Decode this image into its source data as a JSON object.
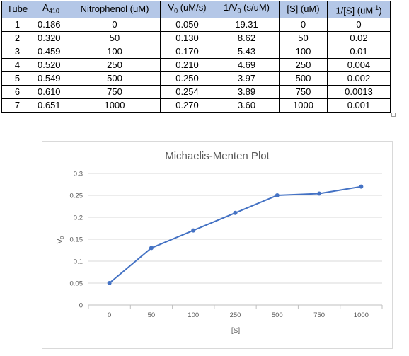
{
  "table": {
    "headers": [
      "Tube",
      "A410",
      "Nitrophenol (uM)",
      "V0 (uM/s)",
      "1/V0 (s/uM)",
      "[S] (uM)",
      "1/[S] (uM-1)"
    ],
    "rows": [
      [
        "1",
        "0.186",
        "0",
        "0.050",
        "19.31",
        "0",
        "0"
      ],
      [
        "2",
        "0.320",
        "50",
        "0.130",
        "8.62",
        "50",
        "0.02"
      ],
      [
        "3",
        "0.459",
        "100",
        "0.170",
        "5.43",
        "100",
        "0.01"
      ],
      [
        "4",
        "0.520",
        "250",
        "0.210",
        "4.69",
        "250",
        "0.004"
      ],
      [
        "5",
        "0.549",
        "500",
        "0.250",
        "3.97",
        "500",
        "0.002"
      ],
      [
        "6",
        "0.610",
        "750",
        "0.254",
        "3.89",
        "750",
        "0.0013"
      ],
      [
        "7",
        "0.651",
        "1000",
        "0.270",
        "3.60",
        "1000",
        "0.001"
      ]
    ]
  },
  "chart_data": {
    "type": "line",
    "title": "Michaelis-Menten Plot",
    "xlabel": "[S]",
    "ylabel": "V0",
    "categories": [
      "0",
      "50",
      "100",
      "250",
      "500",
      "750",
      "1000"
    ],
    "values": [
      0.05,
      0.13,
      0.17,
      0.21,
      0.25,
      0.254,
      0.27
    ],
    "ylim": [
      0,
      0.3
    ],
    "yticks": [
      "0",
      "0.05",
      "0.1",
      "0.15",
      "0.2",
      "0.25",
      "0.3"
    ],
    "grid": true,
    "color": "#4472c4"
  }
}
